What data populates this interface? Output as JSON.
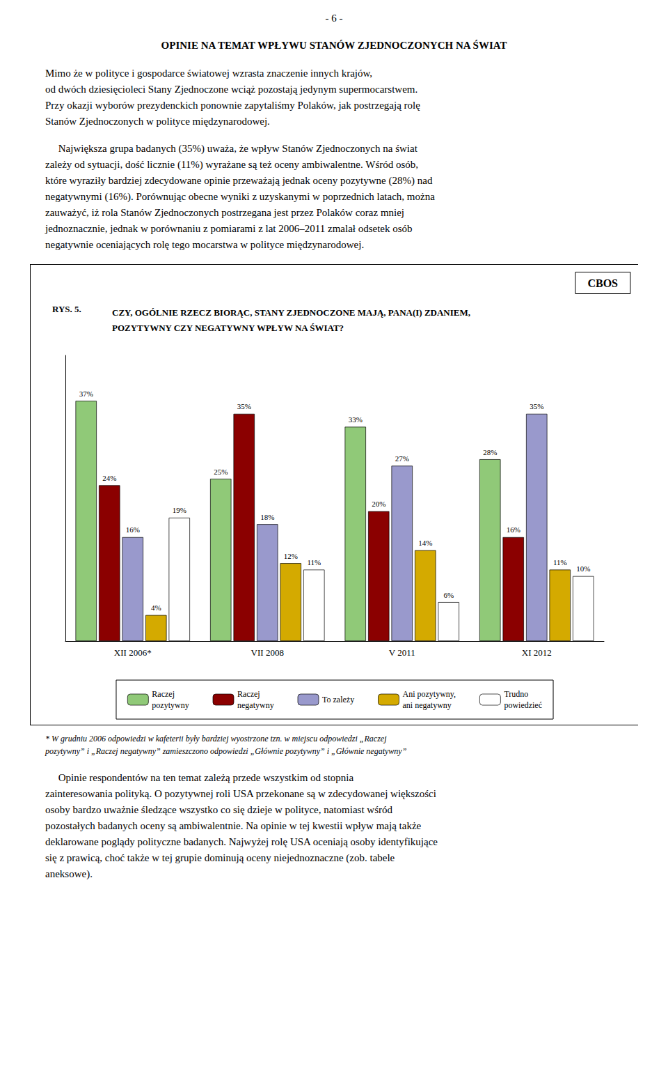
{
  "page_number": "- 6 -",
  "section_title": "OPINIE NA TEMAT WPŁYWU STANÓW ZJEDNOCZONYCH NA ŚWIAT",
  "paragraphs_before": [
    [
      "Mimo że w polityce i gospodarce światowej wzrasta znaczenie innych krajów,",
      "od dwóch dziesięcioleci Stany Zjednoczone wciąż pozostają jedynym supermocarstwem.",
      "Przy okazji wyborów prezydenckich ponownie zapytaliśmy Polaków, jak postrzegają rolę",
      "Stanów Zjednoczonych w polityce międzynarodowej."
    ],
    [
      "     Największa grupa badanych (35%) uważa, że wpływ Stanów Zjednoczonych na świat",
      "zależy od sytuacji, dość licznie (11%) wyrażane są też oceny ambiwalentne. Wśród osób,",
      "które wyraziły bardziej zdecydowane opinie przeważają jednak oceny pozytywne (28%) nad",
      "negatywnymi (16%). Porównując obecne wyniki z uzyskanymi w poprzednich latach, można",
      "zauważyć, iż rola Stanów Zjednoczonych postrzegana jest przez Polaków coraz mniej",
      "jednoznacznie, jednak w porównaniu z pomiarami z lat 2006–2011 zmalał odsetek osób",
      "negatywnie oceniających rolę tego mocarstwa w polityce międzynarodowej."
    ]
  ],
  "chart_data": {
    "type": "bar",
    "title": "RYS. 5.",
    "subtitle": "CZY, OGÓLNIE RZECZ BIORĄC, STANY ZJEDNOCZONE MAJĄ, PANA(I) ZDANIEM,\nPOZYTYWNY CZY NEGATYWNY WPŁYW NA ŚWIAT?",
    "annotations": [
      "CBOS"
    ],
    "categories": [
      "XII 2006*",
      "VII 2008",
      "V 2011",
      "XI 2012"
    ],
    "series": [
      {
        "name": "Raczej\npozytywny",
        "color": "#90c978",
        "values": [
          37,
          25,
          33,
          28
        ],
        "value_labels": [
          "37%",
          "25%",
          "33%",
          "28%"
        ]
      },
      {
        "name": "Raczej\nnegatywny",
        "color": "#8b0000",
        "values": [
          24,
          35,
          20,
          16
        ],
        "value_labels": [
          "24%",
          "35%",
          "20%",
          "16%"
        ]
      },
      {
        "name": "To zależy",
        "color": "#9999cc",
        "values": [
          16,
          18,
          27,
          35
        ],
        "value_labels": [
          "16%",
          "18%",
          "27%",
          "35%"
        ]
      },
      {
        "name": "Ani pozytywny,\nani negatywny",
        "color": "#d4aa00",
        "values": [
          4,
          12,
          14,
          11
        ],
        "value_labels": [
          "4%",
          "12%",
          "14%",
          "11%"
        ]
      },
      {
        "name": "Trudno\npowiedzieć",
        "color": "#ffffff",
        "values": [
          19,
          11,
          6,
          10
        ],
        "value_labels": [
          "19%",
          "11%",
          "6%",
          "10%"
        ]
      }
    ],
    "ylim": [
      0,
      44
    ],
    "grid": false,
    "legend": "bottom",
    "data_labels": true,
    "tick_labels": "x"
  },
  "footnote": [
    "* W grudniu 2006 odpowiedzi w kafeterii były bardziej wyostrzone tzn. w miejscu odpowiedzi „Raczej",
    "pozytywny” i „Raczej negatywny” zamieszczono odpowiedzi „Głównie pozytywny” i „Głównie negatywny”"
  ],
  "paragraphs_after": [
    [
      "     Opinie respondentów na ten temat zależą przede wszystkim od stopnia",
      "zainteresowania polityką. O pozytywnej roli USA przekonane są w zdecydowanej większości",
      "osoby bardzo uważnie śledzące wszystko co się dzieje w polityce, natomiast wśród",
      "pozostałych badanych oceny są ambiwalentnie. Na opinie w tej kwestii wpływ mają także",
      "deklarowane poglądy polityczne badanych. Najwyżej rolę USA oceniają osoby identyfikujące",
      "się z prawicą, choć także w tej grupie dominują oceny niejednoznaczne (zob. tabele",
      "aneksowe)."
    ]
  ]
}
